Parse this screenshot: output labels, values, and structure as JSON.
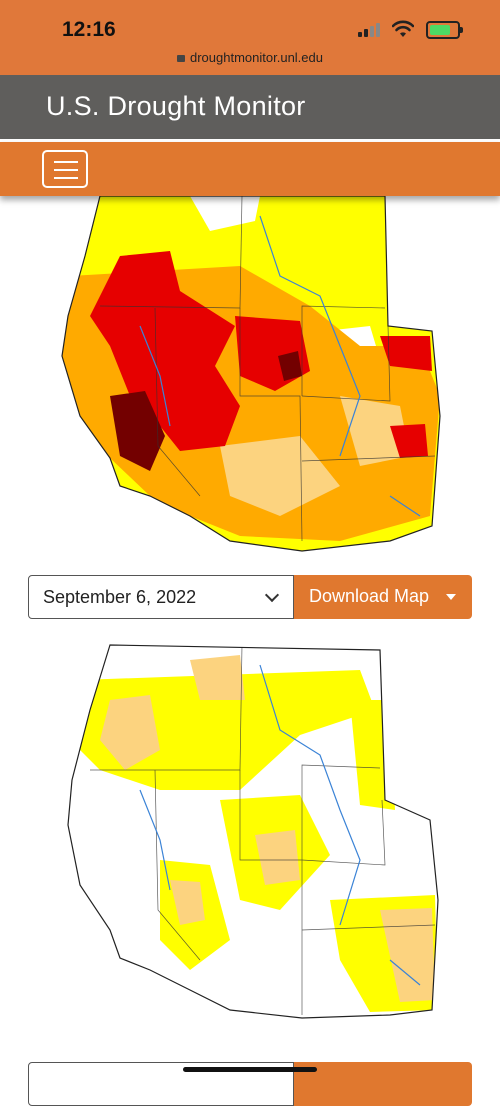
{
  "status_bar": {
    "time": "12:16",
    "url": "droughtmonitor.unl.edu"
  },
  "header": {
    "title": "U.S. Drought Monitor"
  },
  "map_1": {
    "date": "September 6, 2022",
    "download_label": "Download Map"
  },
  "map_2": {
    "date": "",
    "download_label": ""
  },
  "colors": {
    "accent": "#e0782f",
    "header": "#5f5e5c",
    "D0": "#ffff00",
    "D1": "#fcd37f",
    "D2": "#ffaa00",
    "D3": "#e60000",
    "D4": "#730000"
  }
}
